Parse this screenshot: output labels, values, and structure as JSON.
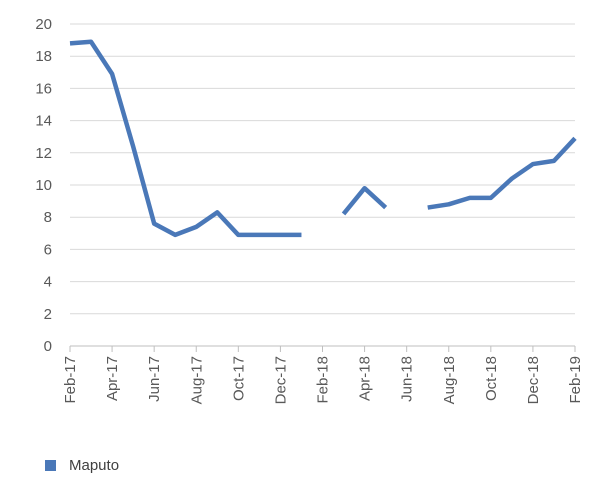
{
  "chart_data": {
    "type": "line",
    "title": "",
    "xlabel": "",
    "ylabel": "",
    "ylim": [
      0,
      20
    ],
    "yticks": [
      0,
      2,
      4,
      6,
      8,
      10,
      12,
      14,
      16,
      18,
      20
    ],
    "x_tick_labels": [
      "Feb-17",
      "Apr-17",
      "Jun-17",
      "Aug-17",
      "Oct-17",
      "Dec-17",
      "Feb-18",
      "Apr-18",
      "Jun-18",
      "Aug-18",
      "Oct-18",
      "Dec-18",
      "Feb-19"
    ],
    "x": [
      "Feb-17",
      "Mar-17",
      "Apr-17",
      "May-17",
      "Jun-17",
      "Jul-17",
      "Aug-17",
      "Sep-17",
      "Oct-17",
      "Nov-17",
      "Dec-17",
      "Jan-18",
      "Feb-18",
      "Mar-18",
      "Apr-18",
      "May-18",
      "Jun-18",
      "Jul-18",
      "Aug-18",
      "Sep-18",
      "Oct-18",
      "Nov-18",
      "Dec-18",
      "Jan-19",
      "Feb-19"
    ],
    "grid": true,
    "legend_position": "bottom-left",
    "series": [
      {
        "name": "Maputo",
        "color": "#4a78b8",
        "values": [
          18.8,
          18.9,
          16.9,
          12.4,
          7.6,
          6.9,
          7.4,
          8.3,
          6.9,
          6.9,
          6.9,
          6.9,
          null,
          8.2,
          9.8,
          8.6,
          null,
          8.6,
          8.8,
          9.2,
          9.2,
          10.4,
          11.3,
          11.5,
          12.9
        ]
      }
    ]
  }
}
